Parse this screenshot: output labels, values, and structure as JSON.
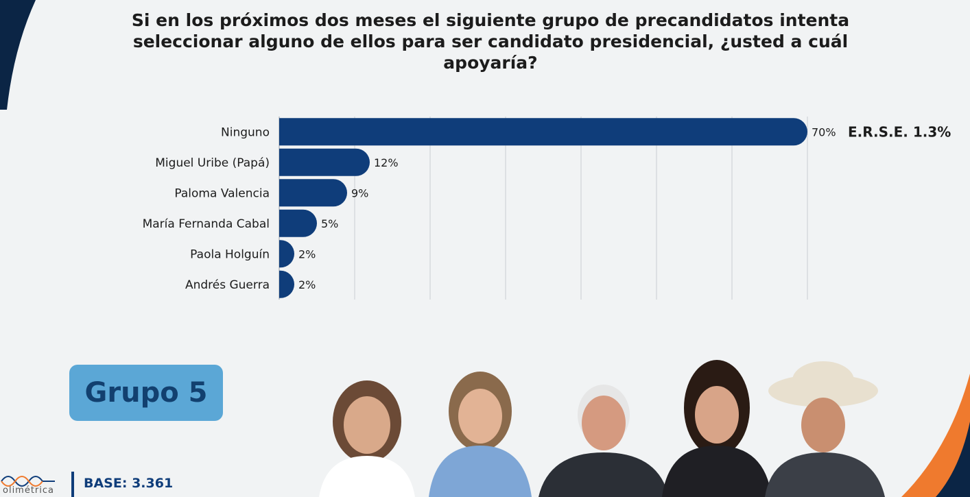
{
  "title": "Si en los próximos dos meses el siguiente grupo de precandidatos intenta seleccionar alguno de ellos para ser candidato presidencial, ¿usted a cuál apoyaría?",
  "error_label": "E.R.S.E. 1.3%",
  "group_label": "Grupo 5",
  "base_label": "BASE: 3.361",
  "logo_text": "olimétrica",
  "colors": {
    "bar": "#0f3d7a",
    "badge": "#5ba7d6",
    "accent_orange": "#ef7a2e",
    "navy": "#0b2545"
  },
  "chart_data": {
    "type": "bar",
    "orientation": "horizontal",
    "categories": [
      "Ninguno",
      "Miguel Uribe (Papá)",
      "Paloma Valencia",
      "María Fernanda Cabal",
      "Paola Holguín",
      "Andrés Guerra"
    ],
    "values": [
      70,
      12,
      9,
      5,
      2,
      2
    ],
    "value_suffix": "%",
    "xlim": [
      0,
      70
    ],
    "grid": true
  }
}
